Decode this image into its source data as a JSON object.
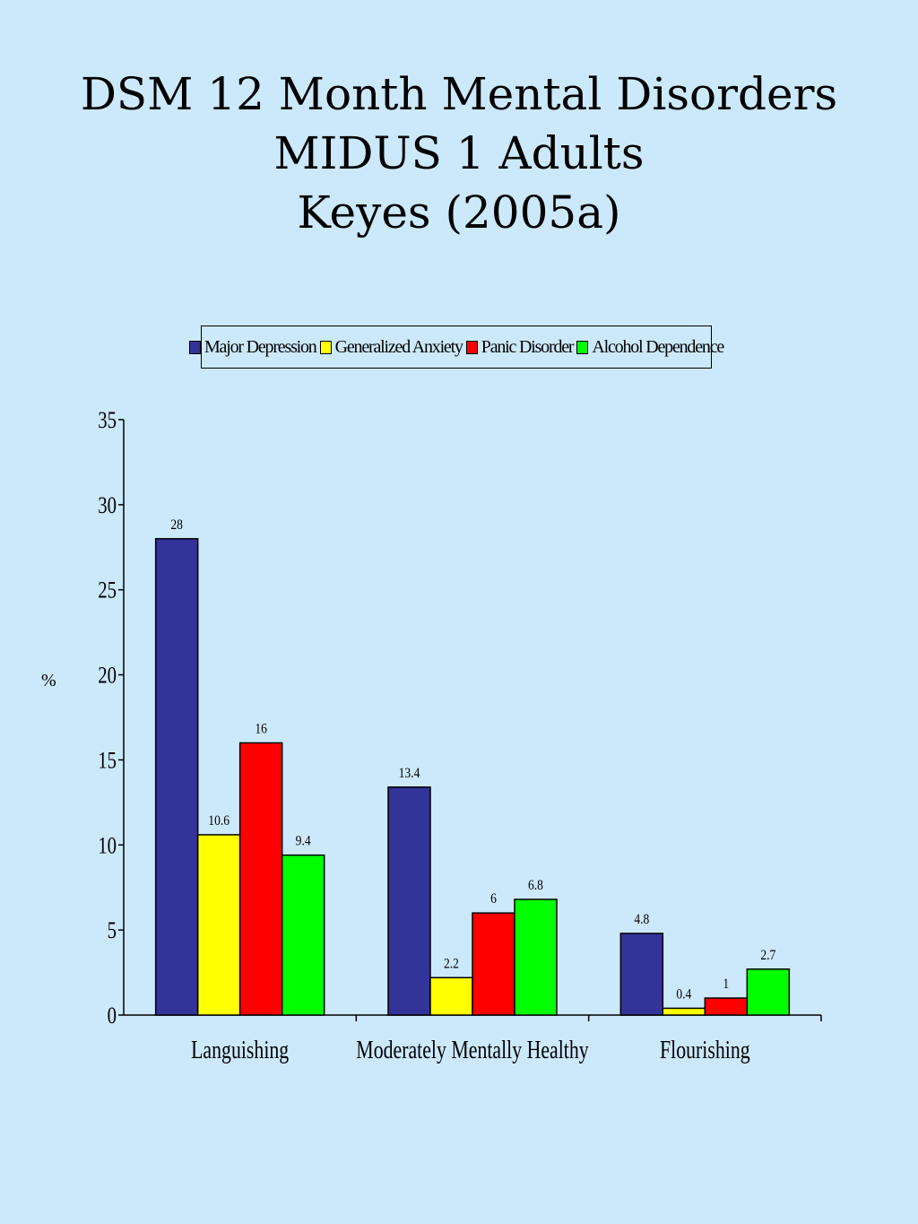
{
  "title": {
    "line1": "DSM 12 Month Mental Disorders",
    "line2": "MIDUS 1 Adults",
    "line3": "Keyes (2005a)"
  },
  "chart_data": {
    "type": "bar",
    "title": "DSM 12 Month Mental Disorders MIDUS 1 Adults Keyes (2005a)",
    "ylabel": "%",
    "xlabel": "",
    "ylim": [
      0,
      35
    ],
    "yticks": [
      "0",
      "5",
      "10",
      "15",
      "20",
      "25",
      "30",
      "35"
    ],
    "categories": [
      "Languishing",
      "Moderately Mentally Healthy",
      "Flourishing"
    ],
    "legend_position": "top",
    "grid": false,
    "series": [
      {
        "name": "Major Depression",
        "color": "#333399",
        "values": [
          28,
          13.4,
          4.8
        ],
        "labels": [
          "28",
          "13.4",
          "4.8"
        ]
      },
      {
        "name": "Generalized Anxiety",
        "color": "#ffff00",
        "values": [
          10.6,
          2.2,
          0.4
        ],
        "labels": [
          "10.6",
          "2.2",
          "0.4"
        ]
      },
      {
        "name": "Panic Disorder",
        "color": "#ff0000",
        "values": [
          16,
          6,
          1
        ],
        "labels": [
          "16",
          "6",
          "1"
        ]
      },
      {
        "name": "Alcohol Dependence",
        "color": "#00ff00",
        "values": [
          9.4,
          6.8,
          2.7
        ],
        "labels": [
          "9.4",
          "6.8",
          "2.7"
        ]
      }
    ]
  }
}
